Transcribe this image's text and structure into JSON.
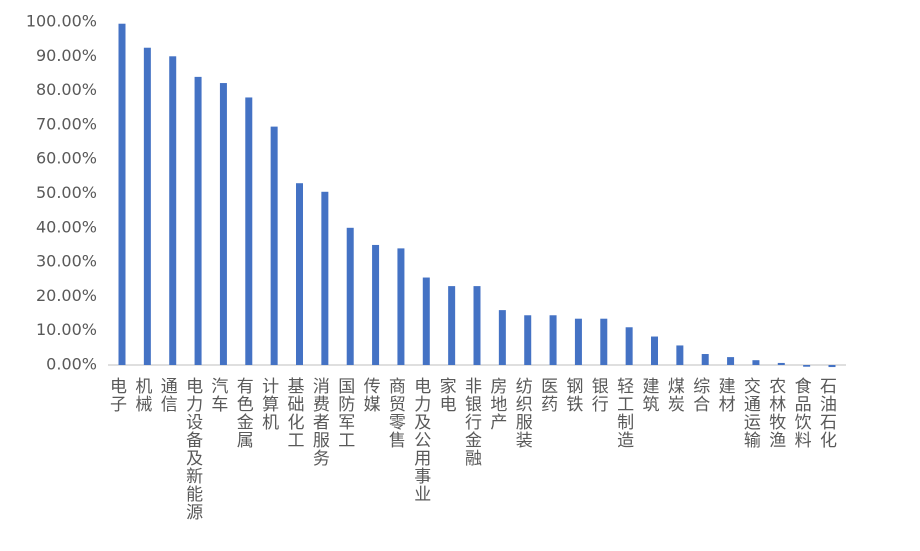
{
  "chart_data": {
    "type": "bar",
    "categories": [
      "电子",
      "机械",
      "通信",
      "电力设备及新能源",
      "汽车",
      "有色金属",
      "计算机",
      "基础化工",
      "消费者服务",
      "国防军工",
      "传媒",
      "商贸零售",
      "电力及公用事业",
      "家电",
      "非银行金融",
      "房地产",
      "纺织服装",
      "医药",
      "钢铁",
      "银行",
      "轻工制造",
      "建筑",
      "煤炭",
      "综合",
      "建材",
      "交通运输",
      "农林牧渔",
      "食品饮料",
      "石油石化"
    ],
    "values": [
      99.5,
      92.5,
      90,
      84,
      82.2,
      78,
      69.5,
      53,
      50.5,
      40,
      35,
      34,
      25.5,
      23,
      23,
      16,
      14.5,
      14.5,
      13.5,
      13.5,
      11,
      8.3,
      5.7,
      3.2,
      2.3,
      1.4,
      0.6,
      -0.5,
      -0.6
    ],
    "color": "#4472c4",
    "ylim": [
      0,
      100
    ],
    "yticks": [
      {
        "value": 0,
        "label": "0.00%"
      },
      {
        "value": 10,
        "label": "10.00%"
      },
      {
        "value": 20,
        "label": "20.00%"
      },
      {
        "value": 30,
        "label": "30.00%"
      },
      {
        "value": 40,
        "label": "40.00%"
      },
      {
        "value": 50,
        "label": "50.00%"
      },
      {
        "value": 60,
        "label": "60.00%"
      },
      {
        "value": 70,
        "label": "70.00%"
      },
      {
        "value": 80,
        "label": "80.00%"
      },
      {
        "value": 90,
        "label": "90.00%"
      },
      {
        "value": 100,
        "label": "100.00%"
      }
    ],
    "grid": false
  }
}
